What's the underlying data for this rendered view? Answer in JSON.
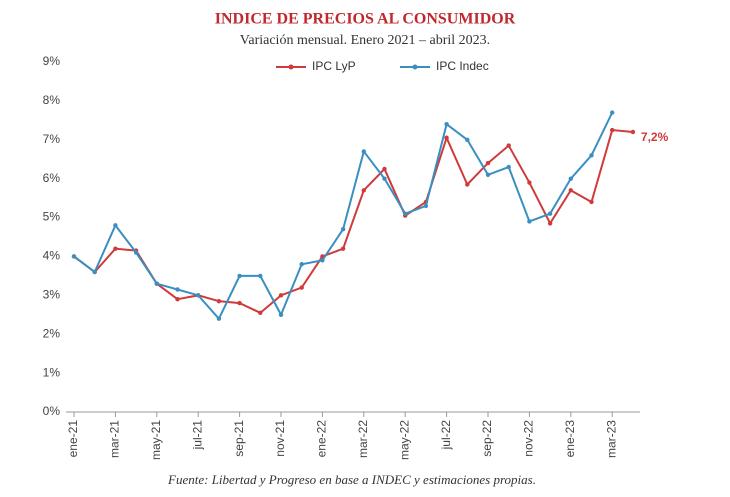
{
  "chart_data": {
    "type": "line",
    "title": "INDICE DE PRECIOS AL CONSUMIDOR",
    "subtitle": "Variación mensual. Enero 2021 – abril 2023.",
    "source": "Fuente: Libertad y Progreso en base a INDEC y estimaciones propias.",
    "categories": [
      "ene-21",
      null,
      "mar-21",
      null,
      "may-21",
      null,
      "jul-21",
      null,
      "sep-21",
      null,
      "nov-21",
      null,
      "ene-22",
      null,
      "mar-22",
      null,
      "may-22",
      null,
      "jul-22",
      null,
      "sep-22",
      null,
      "nov-22",
      null,
      "ene-23",
      null,
      "mar-23",
      null
    ],
    "series": [
      {
        "name": "IPC LyP",
        "color": "#d03a3a",
        "values": [
          4.0,
          3.6,
          4.2,
          4.15,
          3.3,
          2.9,
          3.0,
          2.85,
          2.8,
          2.55,
          3.0,
          3.2,
          4.0,
          4.2,
          5.7,
          6.25,
          5.05,
          5.4,
          7.05,
          5.85,
          6.4,
          6.85,
          5.9,
          4.85,
          5.7,
          5.4,
          7.25,
          7.2
        ],
        "value_labels": [
          null,
          null,
          null,
          null,
          null,
          null,
          null,
          null,
          null,
          null,
          null,
          null,
          null,
          null,
          null,
          null,
          null,
          null,
          null,
          null,
          null,
          null,
          null,
          null,
          null,
          null,
          null,
          "7,2%"
        ]
      },
      {
        "name": "IPC Indec",
        "color": "#3a8fc0",
        "values": [
          4.0,
          3.6,
          4.8,
          4.1,
          3.3,
          3.15,
          3.0,
          2.4,
          3.5,
          3.5,
          2.5,
          3.8,
          3.9,
          4.7,
          6.7,
          6.0,
          5.1,
          5.3,
          7.4,
          7.0,
          6.1,
          6.3,
          4.9,
          5.1,
          6.0,
          6.6,
          7.7,
          null
        ]
      }
    ],
    "ylim": [
      0,
      9
    ],
    "yticks": [
      {
        "value": 0,
        "label": "0%"
      },
      {
        "value": 1,
        "label": "1%"
      },
      {
        "value": 2,
        "label": "2%"
      },
      {
        "value": 3,
        "label": "3%"
      },
      {
        "value": 4,
        "label": "4%"
      },
      {
        "value": 5,
        "label": "5%"
      },
      {
        "value": 6,
        "label": "6%"
      },
      {
        "value": 7,
        "label": "7%"
      },
      {
        "value": 8,
        "label": "8%"
      },
      {
        "value": 9,
        "label": "9%"
      }
    ],
    "grid": false,
    "legend": "top"
  }
}
